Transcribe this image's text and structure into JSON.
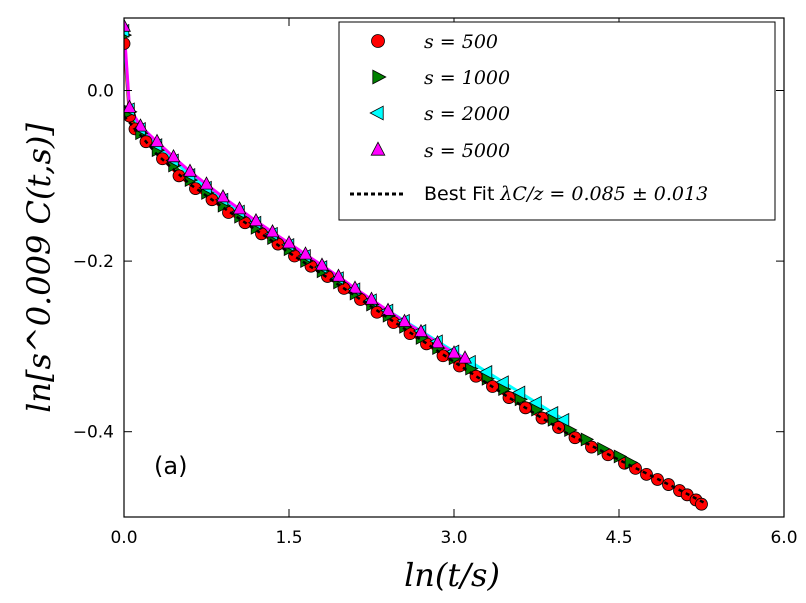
{
  "chart_data": {
    "type": "scatter",
    "xlabel": "ln(t/s)",
    "ylabel": "ln[s^0.009 C(t,s)]",
    "xlim": [
      0.0,
      6.0
    ],
    "ylim": [
      -0.5,
      0.085
    ],
    "xticks": [
      0.0,
      1.5,
      3.0,
      4.5,
      6.0
    ],
    "xtick_labels": [
      "0.0",
      "1.5",
      "3.0",
      "4.5",
      "6.0"
    ],
    "yticks": [
      0.0,
      -0.2,
      -0.4
    ],
    "ytick_labels": [
      "0.0",
      "−0.2",
      "−0.4"
    ],
    "annotation": "(a)",
    "legend_position": "top-right",
    "fit": {
      "name": "Best Fit",
      "label_math": "λC/z = 0.085 ± 0.013",
      "x": [
        0.0,
        0.3,
        0.6,
        1.0,
        1.5,
        2.0,
        2.5,
        3.0,
        3.5,
        4.0,
        4.5,
        5.0,
        5.3
      ],
      "y": [
        -0.03,
        -0.075,
        -0.11,
        -0.146,
        -0.19,
        -0.232,
        -0.275,
        -0.318,
        -0.36,
        -0.4,
        -0.433,
        -0.465,
        -0.485
      ]
    },
    "series": [
      {
        "name": "s = 500",
        "marker": "circle",
        "color": "#ff0000",
        "x": [
          0.0,
          0.05,
          0.1,
          0.2,
          0.35,
          0.5,
          0.65,
          0.8,
          0.95,
          1.1,
          1.25,
          1.4,
          1.55,
          1.7,
          1.85,
          2.0,
          2.15,
          2.3,
          2.45,
          2.6,
          2.75,
          2.9,
          3.05,
          3.2,
          3.35,
          3.5,
          3.65,
          3.8,
          3.95,
          4.1,
          4.25,
          4.4,
          4.55,
          4.65,
          4.75,
          4.85,
          4.95,
          5.05,
          5.12,
          5.2,
          5.25
        ],
        "y": [
          0.055,
          -0.03,
          -0.045,
          -0.06,
          -0.08,
          -0.1,
          -0.115,
          -0.128,
          -0.143,
          -0.155,
          -0.168,
          -0.18,
          -0.194,
          -0.206,
          -0.218,
          -0.232,
          -0.245,
          -0.26,
          -0.272,
          -0.285,
          -0.297,
          -0.311,
          -0.323,
          -0.335,
          -0.347,
          -0.36,
          -0.372,
          -0.384,
          -0.395,
          -0.407,
          -0.418,
          -0.427,
          -0.437,
          -0.443,
          -0.45,
          -0.456,
          -0.462,
          -0.469,
          -0.474,
          -0.48,
          -0.485
        ]
      },
      {
        "name": "s = 1000",
        "marker": "triangle-right",
        "color": "#008000",
        "x": [
          0.0,
          0.05,
          0.15,
          0.3,
          0.45,
          0.6,
          0.75,
          0.9,
          1.05,
          1.2,
          1.35,
          1.5,
          1.65,
          1.8,
          1.95,
          2.1,
          2.25,
          2.4,
          2.55,
          2.7,
          2.85,
          3.0,
          3.15,
          3.3,
          3.45,
          3.6,
          3.75,
          3.9,
          4.05,
          4.2,
          4.35,
          4.5,
          4.6
        ],
        "y": [
          0.065,
          -0.025,
          -0.05,
          -0.07,
          -0.088,
          -0.105,
          -0.12,
          -0.135,
          -0.148,
          -0.161,
          -0.173,
          -0.186,
          -0.2,
          -0.212,
          -0.225,
          -0.238,
          -0.251,
          -0.264,
          -0.277,
          -0.29,
          -0.302,
          -0.314,
          -0.326,
          -0.338,
          -0.35,
          -0.362,
          -0.374,
          -0.386,
          -0.398,
          -0.409,
          -0.42,
          -0.429,
          -0.436
        ]
      },
      {
        "name": "s = 2000",
        "marker": "triangle-left",
        "color": "#00ffff",
        "x": [
          0.0,
          0.05,
          0.15,
          0.3,
          0.45,
          0.6,
          0.75,
          0.9,
          1.05,
          1.2,
          1.35,
          1.5,
          1.65,
          1.8,
          1.95,
          2.1,
          2.25,
          2.4,
          2.55,
          2.7,
          2.85,
          3.0,
          3.15,
          3.3,
          3.45,
          3.6,
          3.75,
          3.9,
          4.0
        ],
        "y": [
          0.07,
          -0.022,
          -0.045,
          -0.064,
          -0.082,
          -0.099,
          -0.114,
          -0.128,
          -0.142,
          -0.155,
          -0.168,
          -0.181,
          -0.194,
          -0.207,
          -0.22,
          -0.233,
          -0.246,
          -0.258,
          -0.27,
          -0.282,
          -0.294,
          -0.306,
          -0.318,
          -0.33,
          -0.342,
          -0.354,
          -0.366,
          -0.378,
          -0.386
        ]
      },
      {
        "name": "s = 5000",
        "marker": "triangle-up",
        "color": "#ff00ff",
        "x": [
          0.0,
          0.05,
          0.15,
          0.3,
          0.45,
          0.6,
          0.75,
          0.9,
          1.05,
          1.2,
          1.35,
          1.5,
          1.65,
          1.8,
          1.95,
          2.1,
          2.25,
          2.4,
          2.55,
          2.7,
          2.85,
          3.0,
          3.1
        ],
        "y": [
          0.075,
          -0.02,
          -0.042,
          -0.06,
          -0.078,
          -0.095,
          -0.11,
          -0.125,
          -0.139,
          -0.153,
          -0.166,
          -0.179,
          -0.192,
          -0.205,
          -0.218,
          -0.232,
          -0.245,
          -0.258,
          -0.271,
          -0.283,
          -0.296,
          -0.308,
          -0.314
        ]
      }
    ]
  }
}
